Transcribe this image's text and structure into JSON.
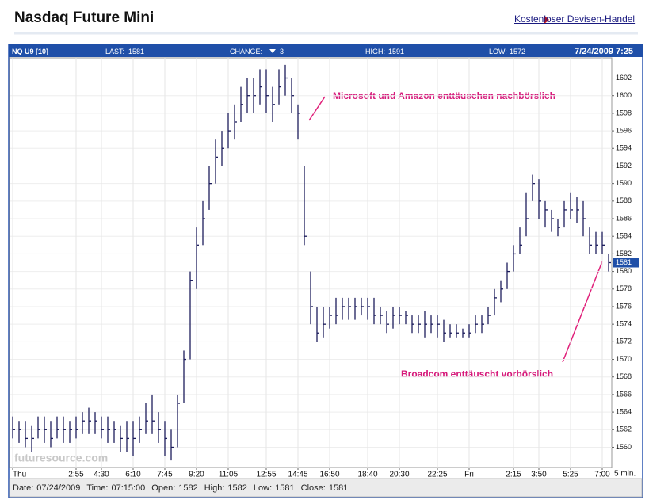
{
  "page": {
    "title": "Nasdaq Future Mini",
    "link": "Kostenloser Devisen-Handel"
  },
  "chart_data": {
    "type": "ohlc",
    "header": {
      "symbol": "NQ U9 [10]",
      "last": {
        "label": "LAST:",
        "value": 1581
      },
      "change": {
        "label": "CHANGE:",
        "value": 3
      },
      "high": {
        "label": "HIGH:",
        "value": 1591
      },
      "low": {
        "label": "LOW:",
        "value": 1572
      },
      "datetime": "7/24/2009 7:25"
    },
    "interval": "5 min.",
    "watermark": "futuresource.com",
    "color": "#1c1c5c",
    "grid": true,
    "ylim": [
      1557.7,
      1604.3
    ],
    "yticks": [
      1560,
      1562,
      1564,
      1566,
      1568,
      1570,
      1572,
      1574,
      1576,
      1578,
      1580,
      1582,
      1584,
      1586,
      1588,
      1590,
      1592,
      1594,
      1596,
      1598,
      1600,
      1602
    ],
    "categories": [
      "Thu",
      null,
      null,
      null,
      null,
      null,
      null,
      null,
      null,
      null,
      "2:55",
      null,
      null,
      null,
      "4:30",
      null,
      null,
      null,
      null,
      "6:10",
      null,
      null,
      null,
      null,
      "7:45",
      null,
      null,
      null,
      null,
      "9:20",
      null,
      null,
      null,
      null,
      "11:05",
      null,
      null,
      null,
      null,
      null,
      "12:55",
      null,
      null,
      null,
      null,
      "14:45",
      null,
      null,
      null,
      null,
      "16:50",
      null,
      null,
      null,
      null,
      null,
      "18:40",
      null,
      null,
      null,
      null,
      "20:30",
      null,
      null,
      null,
      null,
      null,
      "22:25",
      null,
      null,
      null,
      null,
      "Fri",
      null,
      null,
      null,
      null,
      null,
      null,
      "2:15",
      null,
      null,
      null,
      "3:50",
      null,
      null,
      null,
      null,
      "5:25",
      null,
      null,
      null,
      null,
      "7:00",
      null
    ],
    "values": [
      1562,
      1562,
      1561,
      1561,
      1562,
      1562,
      1561,
      1562,
      1562,
      1562,
      1562,
      1563,
      1563,
      1563,
      1562,
      1562,
      1562,
      1561,
      1561,
      1561,
      1562,
      1563,
      1563,
      1562,
      1561,
      1560,
      1565,
      1570,
      1579,
      1583,
      1586,
      1590,
      1593,
      1594,
      1596,
      1597,
      1599,
      1600,
      1600,
      1601,
      1600,
      1599,
      1601,
      1602,
      1600,
      1598,
      1584,
      1576,
      1573,
      1574,
      1575,
      1575,
      1576,
      1576,
      1576,
      1576,
      1576,
      1575,
      1575,
      1574,
      1575,
      1575,
      1575,
      1574,
      1574,
      1574,
      1574,
      1574,
      1573,
      1573,
      1573,
      1573,
      1573,
      1574,
      1574,
      1575,
      1577,
      1578,
      1580,
      1582,
      1583,
      1586,
      1590,
      1588,
      1587,
      1586,
      1585,
      1587,
      1587,
      1587,
      1586,
      1583,
      1583,
      1583,
      1581
    ],
    "high": [
      1563.5,
      1563,
      1563,
      1562.5,
      1563.5,
      1563.5,
      1563,
      1563.5,
      1563.5,
      1563,
      1563.5,
      1564,
      1564.5,
      1564,
      1563.5,
      1563.5,
      1563,
      1562.5,
      1563,
      1563,
      1563.5,
      1565,
      1566,
      1564,
      1563,
      1562,
      1566,
      1571,
      1580,
      1585,
      1588,
      1592,
      1595,
      1596,
      1598,
      1599,
      1601,
      1602,
      1602,
      1603,
      1603,
      1601,
      1603,
      1603.5,
      1602,
      1599,
      1592,
      1580,
      1576,
      1576,
      1576,
      1577,
      1577,
      1577,
      1577,
      1577,
      1577,
      1577,
      1576,
      1575.5,
      1576,
      1576,
      1575.5,
      1575,
      1575,
      1575.5,
      1575,
      1575,
      1574.5,
      1574,
      1574,
      1573.5,
      1574,
      1575,
      1575,
      1576,
      1578,
      1579,
      1581,
      1583,
      1585,
      1589,
      1591,
      1590.5,
      1588,
      1587,
      1586,
      1588,
      1589,
      1588.5,
      1588,
      1585,
      1584.5,
      1584.5,
      1582
    ],
    "low": [
      1561,
      1560.5,
      1560,
      1559.5,
      1561,
      1560.5,
      1560,
      1561,
      1560.5,
      1560.5,
      1561,
      1561.5,
      1561.5,
      1561.5,
      1561,
      1560.5,
      1560.5,
      1559.5,
      1559.5,
      1559,
      1560.5,
      1561.5,
      1561.5,
      1560.5,
      1559,
      1558.5,
      1560,
      1565,
      1570,
      1578,
      1583,
      1587,
      1590,
      1592,
      1594,
      1595,
      1597,
      1598,
      1598,
      1599,
      1598,
      1597,
      1599,
      1600,
      1598,
      1595,
      1583,
      1574,
      1572,
      1572.5,
      1573.5,
      1574,
      1574.5,
      1574.5,
      1574.5,
      1575,
      1574.5,
      1574,
      1574,
      1573,
      1573.5,
      1574,
      1574,
      1573,
      1573,
      1572.5,
      1573,
      1572.5,
      1572,
      1572.5,
      1572.5,
      1572.5,
      1572.5,
      1573,
      1573,
      1574,
      1575,
      1576.5,
      1578,
      1580,
      1582,
      1584,
      1588,
      1586,
      1585,
      1584.5,
      1584,
      1585,
      1586,
      1585.5,
      1584,
      1582,
      1582,
      1582,
      1580
    ],
    "annotations": [
      "Microsoft und Amazon enttäuschen nachbörslich",
      "Broadcom enttäuscht vorbörslich"
    ],
    "footer": [
      {
        "label": "Date:",
        "value": "07/24/2009"
      },
      {
        "label": "Time:",
        "value": "07:15:00"
      },
      {
        "label": "Open:",
        "value": 1582
      },
      {
        "label": "High:",
        "value": 1582
      },
      {
        "label": "Low:",
        "value": 1581
      },
      {
        "label": "Close:",
        "value": 1581
      }
    ]
  }
}
